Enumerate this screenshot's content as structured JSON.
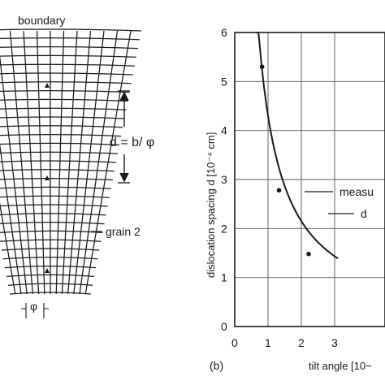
{
  "left_panel": {
    "top_label": "boundary",
    "spacing_label": "d = b/ φ",
    "grain_label": "grain 2",
    "angle_label": "φ"
  },
  "right_panel": {
    "panel_letter": "(b)",
    "legend_measured": "measu",
    "legend_curve": "d"
  },
  "chart_data": {
    "type": "scatter",
    "xlabel": "tilt angle [10−",
    "ylabel": "dislocation spacing d  [10⁻⁴ cm]",
    "xlim": [
      0,
      3.1
    ],
    "ylim": [
      0,
      6
    ],
    "x_ticks": [
      "0",
      "1",
      "2",
      "3"
    ],
    "y_ticks": [
      "0",
      "1",
      "2",
      "3",
      "4",
      "5",
      "6"
    ],
    "grid": true,
    "series": [
      {
        "kind": "points",
        "points": [
          {
            "x": 0.82,
            "y": 5.3
          },
          {
            "x": 1.33,
            "y": 2.78
          },
          {
            "x": 2.22,
            "y": 1.48
          }
        ]
      },
      {
        "kind": "curve",
        "formula": "d = 4.3 / θ",
        "x_range": [
          0.65,
          3.1
        ]
      }
    ]
  }
}
